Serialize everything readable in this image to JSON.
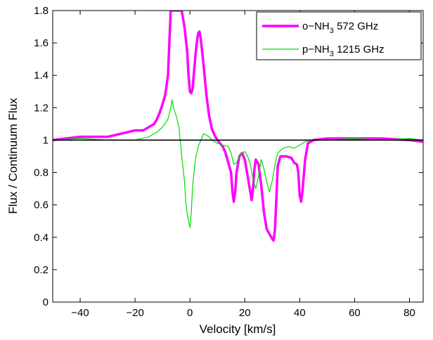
{
  "chart_data": {
    "type": "line",
    "xlabel": "Velocity [km/s]",
    "ylabel": "Flux / Continuum Flux",
    "xlim": [
      -50,
      85
    ],
    "ylim": [
      0,
      1.8
    ],
    "x_ticks": [
      "−40",
      "−20",
      "0",
      "20",
      "40",
      "60",
      "80"
    ],
    "x_tick_values": [
      -40,
      -20,
      0,
      20,
      40,
      60,
      80
    ],
    "y_ticks": [
      "0",
      "0.2",
      "0.4",
      "0.6",
      "0.8",
      "1",
      "1.2",
      "1.4",
      "1.6",
      "1.8"
    ],
    "y_tick_values": [
      0,
      0.2,
      0.4,
      0.6,
      0.8,
      1,
      1.2,
      1.4,
      1.6,
      1.8
    ],
    "reference_line": {
      "y": 1.0,
      "color": "#000000"
    },
    "legend": {
      "placement": "top-right"
    },
    "grid": false,
    "series": [
      {
        "name": "o−NH3 572 GHz",
        "name_parts": {
          "prefix": "o−NH",
          "subscript": "3",
          "suffix": " 572 GHz"
        },
        "color": "#ff00ff",
        "x": [
          -50,
          -40,
          -30,
          -25,
          -20,
          -17,
          -15,
          -13,
          -12,
          -11,
          -10,
          -9,
          -8,
          -7.5,
          -7,
          -6.5,
          -4,
          -3,
          -2,
          -1,
          -0.5,
          0,
          0.5,
          1,
          1.5,
          2,
          2.5,
          3,
          3.5,
          4,
          5,
          6,
          7,
          8,
          9,
          10,
          11,
          12,
          13,
          14,
          15,
          15.5,
          16,
          16.5,
          17,
          18,
          19,
          20,
          21,
          22,
          22.5,
          23,
          23.5,
          24,
          25,
          26,
          27,
          28,
          29,
          30,
          30.5,
          31,
          31.5,
          32,
          33,
          35,
          37,
          38,
          39,
          39.5,
          40,
          40.5,
          41,
          42,
          43,
          45,
          50,
          60,
          70,
          80,
          85
        ],
        "y": [
          1.0,
          1.02,
          1.02,
          1.04,
          1.06,
          1.06,
          1.08,
          1.1,
          1.13,
          1.17,
          1.22,
          1.28,
          1.4,
          1.6,
          1.8,
          1.8,
          1.8,
          1.8,
          1.7,
          1.55,
          1.4,
          1.3,
          1.29,
          1.32,
          1.42,
          1.52,
          1.6,
          1.66,
          1.67,
          1.62,
          1.46,
          1.28,
          1.15,
          1.07,
          1.03,
          1.0,
          0.98,
          0.96,
          0.92,
          0.86,
          0.8,
          0.68,
          0.62,
          0.68,
          0.8,
          0.9,
          0.92,
          0.88,
          0.78,
          0.68,
          0.63,
          0.7,
          0.82,
          0.88,
          0.85,
          0.72,
          0.55,
          0.45,
          0.42,
          0.39,
          0.38,
          0.45,
          0.64,
          0.84,
          0.9,
          0.9,
          0.89,
          0.86,
          0.85,
          0.8,
          0.66,
          0.62,
          0.68,
          0.88,
          0.98,
          1.0,
          1.01,
          1.01,
          1.01,
          1.0,
          0.99
        ]
      },
      {
        "name": "p−NH3 1215 GHz",
        "name_parts": {
          "prefix": "p−NH",
          "subscript": "3",
          "suffix": " 1215 GHz"
        },
        "color": "#00dd00",
        "x": [
          -50,
          -40,
          -30,
          -20,
          -15,
          -12,
          -10,
          -8,
          -7,
          -6.5,
          -6,
          -5,
          -4,
          -3,
          -2,
          -1.5,
          -1,
          -0.5,
          0,
          0.5,
          1,
          2,
          3,
          4,
          5,
          6,
          7,
          8,
          9,
          10,
          12,
          14,
          15,
          16,
          17,
          18,
          19,
          20,
          21,
          22,
          23,
          24,
          25,
          26,
          27,
          28,
          29,
          30,
          31,
          32,
          34,
          36,
          38,
          40,
          42,
          44,
          50,
          60,
          70,
          80,
          85
        ],
        "y": [
          1.0,
          1.01,
          1.0,
          1.0,
          1.02,
          1.05,
          1.08,
          1.13,
          1.2,
          1.25,
          1.2,
          1.15,
          1.08,
          0.9,
          0.75,
          0.62,
          0.55,
          0.5,
          0.46,
          0.55,
          0.72,
          0.88,
          0.96,
          1.0,
          1.04,
          1.03,
          1.02,
          1.0,
          0.99,
          0.98,
          0.97,
          0.96,
          0.92,
          0.85,
          0.86,
          0.9,
          0.92,
          0.93,
          0.9,
          0.85,
          0.76,
          0.7,
          0.78,
          0.88,
          0.82,
          0.74,
          0.68,
          0.75,
          0.85,
          0.92,
          0.95,
          0.96,
          0.95,
          0.97,
          0.99,
          1.0,
          1.0,
          1.01,
          1.0,
          1.01,
          1.0
        ]
      }
    ]
  }
}
